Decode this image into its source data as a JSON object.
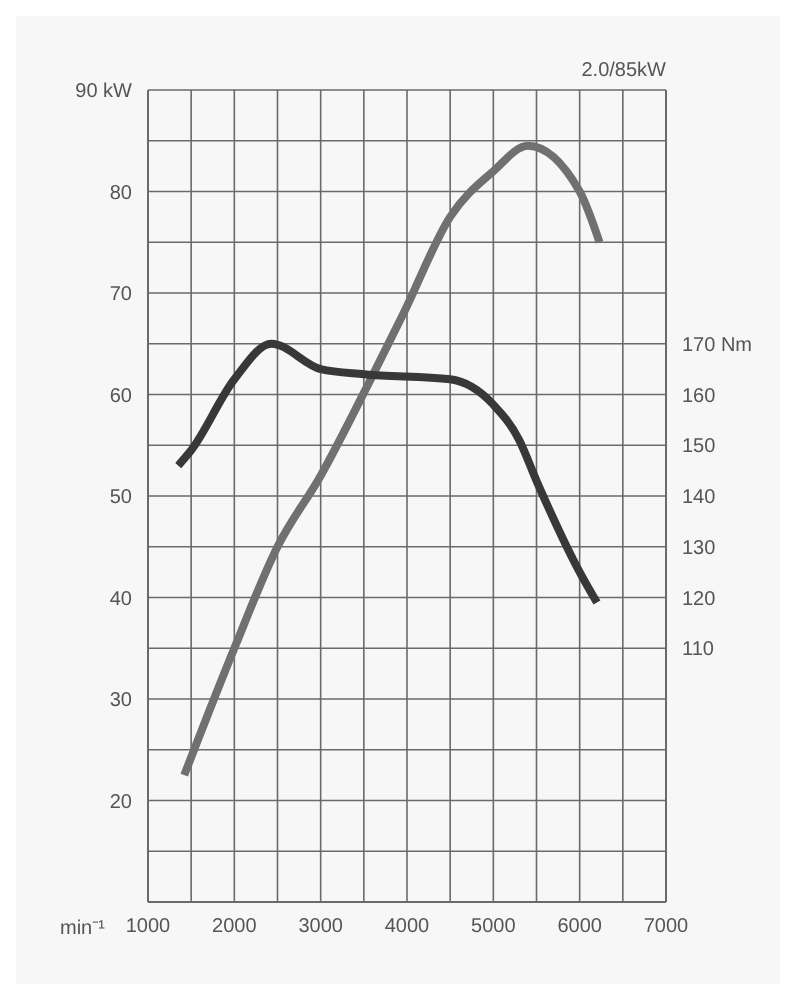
{
  "chart_data": {
    "type": "line",
    "title": "2.0/85kW",
    "xlabel": "min⁻¹",
    "xlim": [
      1000,
      7000
    ],
    "xticks": [
      1000,
      {
        "value": 1500,
        "label": null
      },
      2000,
      {
        "value": 2500,
        "label": null
      },
      3000,
      {
        "value": 3500,
        "label": null
      },
      4000,
      {
        "value": 4500,
        "label": null
      },
      5000,
      {
        "value": 5500,
        "label": null
      },
      6000,
      {
        "value": 6500,
        "label": null
      },
      7000
    ],
    "ylim": [
      10,
      90
    ],
    "yticks": [
      {
        "value": 15,
        "label": null
      },
      20,
      {
        "value": 25,
        "label": null
      },
      30,
      {
        "value": 35,
        "label": null
      },
      40,
      {
        "value": 45,
        "label": null
      },
      50,
      {
        "value": 55,
        "label": null
      },
      60,
      {
        "value": 65,
        "label": null
      },
      70,
      {
        "value": 75,
        "label": null
      },
      80,
      {
        "value": 85,
        "label": null
      },
      {
        "value": 90,
        "label": "90 kW"
      }
    ],
    "y2lim": [
      60,
      220
    ],
    "y2ticks": [
      110,
      120,
      130,
      140,
      150,
      160,
      {
        "value": 170,
        "label": "170 Nm"
      }
    ],
    "grid": true,
    "line_style": "solid",
    "marker": "none",
    "series": [
      {
        "color": "#707070",
        "x": [
          1420,
          2000,
          2500,
          3000,
          3550,
          3960,
          4500,
          5000,
          5400,
          6000,
          6230
        ],
        "values": [
          22.5,
          35,
          45,
          52,
          61,
          68,
          77.5,
          82,
          84.5,
          80,
          75
        ]
      },
      {
        "color": "#383838",
        "axis": "y2",
        "x": [
          1350,
          1500,
          2000,
          2430,
          3000,
          3500,
          4500,
          5000,
          5300,
          5500,
          6000,
          6200
        ],
        "values": [
          146,
          149,
          163,
          170,
          165,
          164,
          163,
          158,
          151,
          143,
          125,
          119
        ]
      }
    ]
  }
}
